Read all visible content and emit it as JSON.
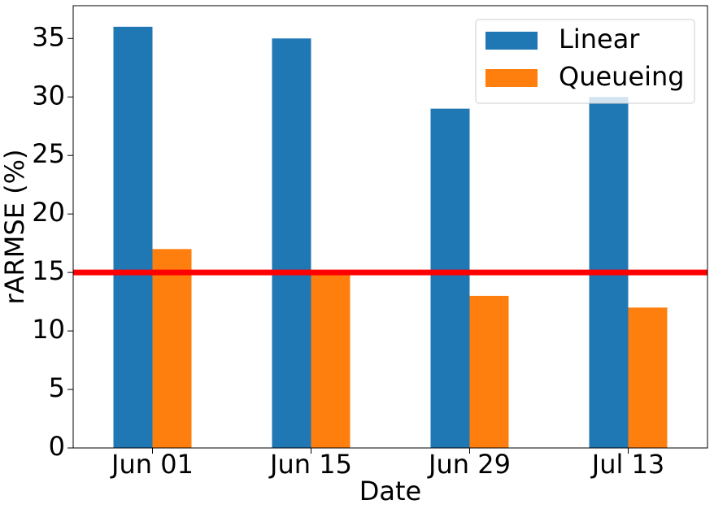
{
  "chart_data": {
    "type": "bar",
    "xlabel": "Date",
    "ylabel": "rARMSE (%)",
    "categories": [
      "Jun 01",
      "Jun 15",
      "Jun 29",
      "Jul 13"
    ],
    "series": [
      {
        "name": "Linear",
        "color": "#1f77b4",
        "values": [
          36,
          35,
          29,
          30
        ]
      },
      {
        "name": "Queueing",
        "color": "#ff7f0e",
        "values": [
          17,
          15,
          13,
          12
        ]
      }
    ],
    "hline": {
      "value": 15,
      "color": "#ff0000"
    },
    "ylim": [
      0,
      37.8
    ],
    "yticks": [
      0,
      5,
      10,
      15,
      20,
      25,
      30,
      35
    ],
    "legend": "upper right"
  }
}
